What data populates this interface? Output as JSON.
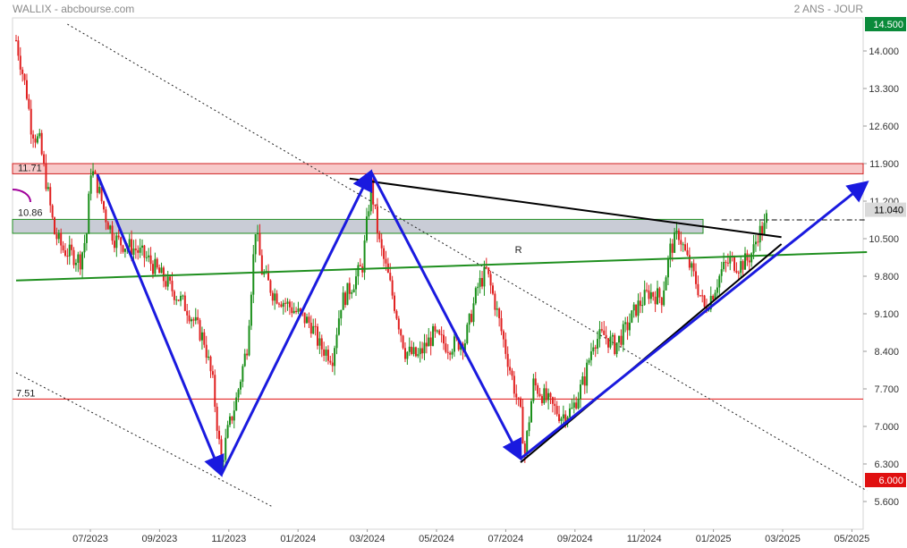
{
  "header": {
    "left": "WALLIX - abcbourse.com",
    "right": "2 ANS - JOUR"
  },
  "colors": {
    "up": "#1a8f1a",
    "down": "#e02020",
    "zigzag": "#1a1adf",
    "trend_black": "#000000",
    "support_green": "#1f8f1f",
    "resistance_zone": "#f7c9c9",
    "resistance_zone_border": "#d02020",
    "grey_zone": "#c9ccd6",
    "badge_top": "#0a8a3a",
    "badge_bottom": "#e01010",
    "badge_last": "#dadada",
    "dotted": "#222222"
  },
  "chart_data": {
    "type": "candlestick",
    "symbol": "WALLIX",
    "source": "abcbourse.com",
    "period": "2 ANS - JOUR",
    "ylim": [
      5.4,
      14.7
    ],
    "y_ticks": [
      "14.000",
      "13.300",
      "12.600",
      "11.900",
      "11.200",
      "10.500",
      "9.800",
      "9.100",
      "8.400",
      "7.700",
      "7.000",
      "6.300",
      "5.600"
    ],
    "x_ticks": [
      "07/2023",
      "09/2023",
      "11/2023",
      "01/2024",
      "03/2024",
      "05/2024",
      "07/2024",
      "09/2024",
      "11/2024",
      "01/2025",
      "03/2025",
      "05/2025"
    ],
    "badges": {
      "top": "14.500",
      "last": "11.040",
      "bottom": "6.000"
    },
    "levels": {
      "resistance_label": "11.71",
      "resistance_low": 11.71,
      "resistance_high": 11.9,
      "zone_label": "10.86",
      "zone_low": 10.6,
      "zone_high": 10.86,
      "support_label": "7.51",
      "support": 7.51
    },
    "support_line_label": "R",
    "price_path": [
      [
        0,
        14.2
      ],
      [
        3,
        13.6
      ],
      [
        5,
        13.2
      ],
      [
        7,
        12.6
      ],
      [
        9,
        12.4
      ],
      [
        11,
        12.3
      ],
      [
        18,
        10.6
      ],
      [
        22,
        10.3
      ],
      [
        26,
        10.2
      ],
      [
        30,
        10.1
      ],
      [
        33,
        10.6
      ],
      [
        35,
        11.8
      ],
      [
        38,
        11.5
      ],
      [
        42,
        10.9
      ],
      [
        46,
        10.5
      ],
      [
        50,
        10.4
      ],
      [
        56,
        10.3
      ],
      [
        62,
        10.1
      ],
      [
        68,
        9.8
      ],
      [
        74,
        9.5
      ],
      [
        80,
        9.2
      ],
      [
        84,
        8.9
      ],
      [
        88,
        8.6
      ],
      [
        92,
        7.8
      ],
      [
        96,
        6.3
      ],
      [
        99,
        6.9
      ],
      [
        103,
        7.5
      ],
      [
        108,
        8.5
      ],
      [
        112,
        10.7
      ],
      [
        115,
        9.9
      ],
      [
        120,
        9.5
      ],
      [
        126,
        9.3
      ],
      [
        132,
        9.1
      ],
      [
        138,
        8.9
      ],
      [
        142,
        8.5
      ],
      [
        148,
        8.3
      ],
      [
        152,
        9.3
      ],
      [
        158,
        9.7
      ],
      [
        162,
        10.0
      ],
      [
        166,
        11.5
      ],
      [
        170,
        10.4
      ],
      [
        174,
        9.8
      ],
      [
        178,
        9.1
      ],
      [
        182,
        8.4
      ],
      [
        188,
        8.3
      ],
      [
        195,
        8.7
      ],
      [
        202,
        8.5
      ],
      [
        210,
        8.6
      ],
      [
        216,
        9.6
      ],
      [
        220,
        9.9
      ],
      [
        224,
        9.3
      ],
      [
        228,
        8.6
      ],
      [
        232,
        7.9
      ],
      [
        236,
        7.2
      ],
      [
        238,
        6.5
      ],
      [
        242,
        7.8
      ],
      [
        246,
        7.6
      ],
      [
        250,
        7.4
      ],
      [
        255,
        7.2
      ],
      [
        260,
        7.3
      ],
      [
        266,
        7.9
      ],
      [
        270,
        8.6
      ],
      [
        275,
        8.7
      ],
      [
        280,
        8.5
      ],
      [
        285,
        8.8
      ],
      [
        290,
        9.2
      ],
      [
        296,
        9.5
      ],
      [
        302,
        9.4
      ],
      [
        306,
        10.3
      ],
      [
        310,
        10.6
      ],
      [
        314,
        10.1
      ],
      [
        318,
        9.7
      ],
      [
        322,
        9.2
      ],
      [
        326,
        9.5
      ],
      [
        330,
        9.9
      ],
      [
        334,
        10.1
      ],
      [
        338,
        10.0
      ],
      [
        342,
        10.1
      ],
      [
        345,
        10.3
      ],
      [
        347,
        10.6
      ],
      [
        350,
        10.7
      ],
      [
        352,
        11.04
      ]
    ],
    "trendlines": {
      "zigzag_points": [
        [
          38,
          11.7
        ],
        [
          96,
          6.1
        ],
        [
          166,
          11.75
        ],
        [
          236,
          6.4
        ],
        [
          398,
          11.55
        ]
      ],
      "triangle_upper": [
        [
          156,
          11.62
        ],
        [
          358,
          10.53
        ]
      ],
      "triangle_lower": [
        [
          236,
          6.33
        ],
        [
          358,
          10.4
        ]
      ],
      "support_green": [
        [
          0,
          9.72
        ],
        [
          398,
          10.25
        ]
      ],
      "dotted_upper": [
        [
          24,
          14.5
        ],
        [
          398,
          5.8
        ]
      ],
      "dotted_lower": [
        [
          0,
          8.0
        ],
        [
          120,
          5.5
        ]
      ],
      "dashdot_last": [
        [
          330,
          10.85
        ],
        [
          398,
          10.85
        ]
      ]
    }
  }
}
